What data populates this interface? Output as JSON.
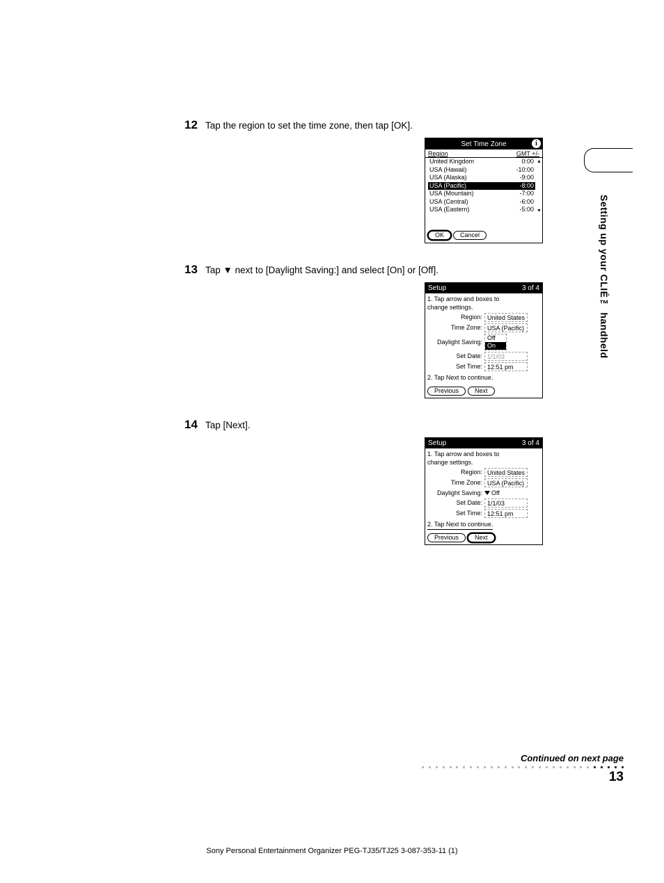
{
  "steps": {
    "s12": {
      "num": "12",
      "text": "Tap the region to set the time zone, then tap [OK]."
    },
    "s13": {
      "num": "13",
      "text": "Tap ▼ next to [Daylight Saving:] and select [On] or [Off]."
    },
    "s14": {
      "num": "14",
      "text": "Tap [Next]."
    }
  },
  "tz_screen": {
    "title": "Set Time Zone",
    "info_icon": "i",
    "col_region": "Region",
    "col_gmt": "GMT +/-",
    "rows": [
      {
        "name": "United Kingdom",
        "gmt": "0:00"
      },
      {
        "name": "USA (Hawaii)",
        "gmt": "-10:00"
      },
      {
        "name": "USA (Alaska)",
        "gmt": "-9:00"
      },
      {
        "name": "USA (Pacific)",
        "gmt": "-8:00"
      },
      {
        "name": "USA (Mountain)",
        "gmt": "-7:00"
      },
      {
        "name": "USA (Central)",
        "gmt": "-6:00"
      },
      {
        "name": "USA (Eastern)",
        "gmt": "-5:00"
      }
    ],
    "ok": "OK",
    "cancel": "Cancel"
  },
  "setup1": {
    "title_l": "Setup",
    "title_r": "3 of 4",
    "line1a": "1. Tap arrow and boxes to",
    "line1b": "change settings.",
    "region_lbl": "Region:",
    "region_val": "United States",
    "tz_lbl": "Time Zone:",
    "tz_val": "USA (Pacific)",
    "ds_lbl": "Daylight Saving:",
    "ds_off": "Off",
    "ds_on": "On",
    "date_lbl": "Set Date:",
    "date_val": "1/1/03",
    "time_lbl": "Set Time:",
    "time_val": "12:51 pm",
    "line2": "2. Tap Next to continue.",
    "prev": "Previous",
    "next": "Next"
  },
  "setup2": {
    "title_l": "Setup",
    "title_r": "3 of 4",
    "line1a": "1. Tap arrow and boxes to",
    "line1b": "change settings.",
    "region_lbl": "Region:",
    "region_val": "United States",
    "tz_lbl": "Time Zone:",
    "tz_val": "USA (Pacific)",
    "ds_lbl": "Daylight Saving:",
    "ds_val": "Off",
    "date_lbl": "Set Date:",
    "date_val": "1/1/03",
    "time_lbl": "Set Time:",
    "time_val": "12:51 pm",
    "line2": "2. Tap Next to continue.",
    "prev": "Previous",
    "next": "Next"
  },
  "side_label": "Setting up your CLIÉ™ handheld",
  "continued": "Continued on next page",
  "page_num": "13",
  "footer": "Sony Personal Entertainment Organizer  PEG-TJ35/TJ25  3-087-353-11 (1)",
  "colors": {
    "text": "#000000",
    "bg": "#ffffff",
    "inverse_bg": "#000000",
    "inverse_fg": "#ffffff",
    "dash": "#999999",
    "dot_gray": "#bbbbbb",
    "dot_dark": "#333333"
  }
}
